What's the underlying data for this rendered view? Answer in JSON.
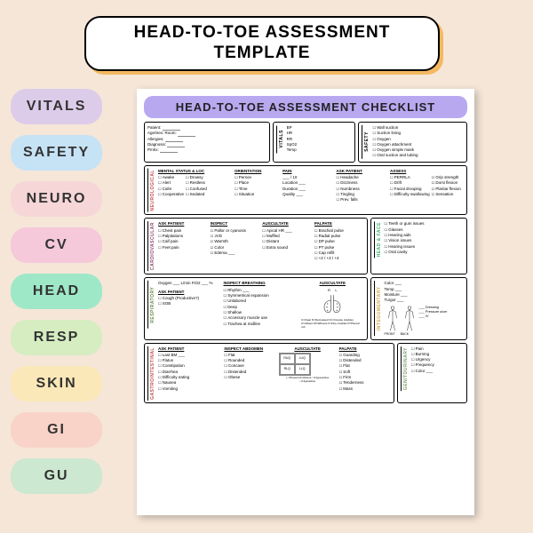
{
  "title": "HEAD-TO-TOE ASSESSMENT TEMPLATE",
  "tags": [
    {
      "label": "VITALS",
      "bg": "#dcccea"
    },
    {
      "label": "SAFETY",
      "bg": "#c6e2f5"
    },
    {
      "label": "NEURO",
      "bg": "#f7d6d8"
    },
    {
      "label": "CV",
      "bg": "#f5c8da"
    },
    {
      "label": "HEAD",
      "bg": "#9ee8c8"
    },
    {
      "label": "RESP",
      "bg": "#d5edc0"
    },
    {
      "label": "SKIN",
      "bg": "#fbe8b8"
    },
    {
      "label": "GI",
      "bg": "#f9d3c8"
    },
    {
      "label": "GU",
      "bg": "#cde8d0"
    }
  ],
  "sheet_title": "HEAD-TO-TOE ASSESSMENT CHECKLIST",
  "patient_box": {
    "fields": [
      "Patient:",
      "Age/Sex:        Room:",
      "Allergies:",
      "Diagnosis:",
      "Pmhx:"
    ]
  },
  "vitals": {
    "label": "VITALS",
    "items": [
      "BP",
      "HR",
      "RR",
      "SpO2",
      "Temp"
    ]
  },
  "safety": {
    "label": "SAFETY",
    "items": [
      "Wall suction",
      "Suction lining",
      "Oxygen",
      "Oxygen attachment",
      "Oxygen simple mask",
      "Oral suction and tubing"
    ]
  },
  "neuro": {
    "label": "NEUROLOGICAL",
    "mental": {
      "h": "MENTAL STATUS & LOC",
      "c1": [
        "Awake",
        "Alert",
        "Calm",
        "Cooperative"
      ],
      "c2": [
        "Drowsy",
        "Restless",
        "Confused",
        "Sedated"
      ]
    },
    "orient": {
      "h": "ORIENTATION",
      "items": [
        "Person",
        "Place",
        "Time",
        "Situation"
      ]
    },
    "pain": {
      "h": "PAIN",
      "items": [
        "___ / 10",
        "Location ___",
        "Duration ___",
        "Quality ___"
      ]
    },
    "ask": {
      "h": "ASK PATIENT",
      "items": [
        "Headache",
        "Dizziness",
        "Numbness",
        "Tingling",
        "Prev. falls"
      ]
    },
    "assess": {
      "h": "ASSESS",
      "c1": [
        "PERRLA",
        "Drift",
        "Facial drooping",
        "Difficulty swallowing"
      ],
      "c2": [
        "Grip strength",
        "Dorsi flexion",
        "Plantar flexion",
        "Sensation"
      ]
    }
  },
  "cardio": {
    "label": "CARDIOVASCULAR",
    "ask": {
      "h": "ASK PATIENT",
      "items": [
        "Chest pain",
        "Palpitations",
        "Calf pain",
        "Feet pain"
      ]
    },
    "inspect": {
      "h": "INSPECT",
      "items": [
        "Pallor or cyanosis",
        "JVD",
        "Warmth",
        "Color",
        "Edema ___"
      ]
    },
    "ausc": {
      "h": "AUSCULTATE",
      "items": [
        "Apical HR ___",
        "Muffled",
        "Distant",
        "Extra sound"
      ]
    },
    "palp": {
      "h": "PALPATE",
      "items": [
        "Brachial pulse",
        "Radial pulse",
        "DP pulse",
        "PT pulse",
        "Cap refill",
        "+2 / +3 / +4"
      ]
    }
  },
  "head": {
    "label": "HEAD & FACE",
    "items": [
      "Teeth or gum issues",
      "Glasses",
      "Hearing aids",
      "Vision issues",
      "Hearing issues",
      "Oral cavity"
    ]
  },
  "resp": {
    "label": "RESPIRATORY",
    "top": "Oxygen ___ L/min    FiO2 ___ %",
    "ask": {
      "h": "ASK PATIENT",
      "items": [
        "Cough (Productive?)",
        "SOB"
      ]
    },
    "inspect": {
      "h": "INSPECT BREATHING",
      "items": [
        "Rhythm ___",
        "Symmetrical expansion",
        "Unlabored",
        "Deep",
        "Shallow",
        "Accessory muscle use",
        "Trachea at midline"
      ]
    },
    "ausc": {
      "h": "AUSCULTATE",
      "legend": "C=Clear  D=Decreased  CC=Coarse crackles  A=Absent  W=Wheeze  F=Fine crackles  P=Pleural rub"
    }
  },
  "integ": {
    "label": "INTEGUMENTARY",
    "top": [
      "Color ___",
      "Temp ___",
      "Moisture ___",
      "Turgor ___"
    ],
    "notes": [
      "Dressing",
      "Pressure ulcer",
      "IV"
    ],
    "front": "FRONT",
    "back": "BACK"
  },
  "gi": {
    "label": "GASTROINTESTINAL",
    "ask": {
      "h": "ASK PATIENT",
      "items": [
        "Last BM ___",
        "Flatus",
        "Constipation",
        "Diarrhea",
        "Difficulty eating",
        "Nausea",
        "Vomiting"
      ]
    },
    "inspect": {
      "h": "INSPECT ABDOMEN",
      "items": [
        "Flat",
        "Rounded",
        "Concave",
        "Distended",
        "Obese"
      ]
    },
    "ausc": {
      "h": "AUSCULTATE",
      "quads": [
        "RUQ",
        "LUQ",
        "RLQ",
        "LLQ"
      ],
      "legend": "+ =Present  A=Absent  ↑=Hyperactive  ↓=Hypoactive"
    },
    "palp": {
      "h": "PALPATE",
      "items": [
        "Guarding",
        "Distended",
        "Flat",
        "Soft",
        "Firm",
        "Tenderness",
        "Mass"
      ]
    }
  },
  "gu": {
    "label": "GENITOURINARY",
    "items": [
      "Pain",
      "Burning",
      "Urgency",
      "Frequency",
      "Color ___"
    ]
  }
}
